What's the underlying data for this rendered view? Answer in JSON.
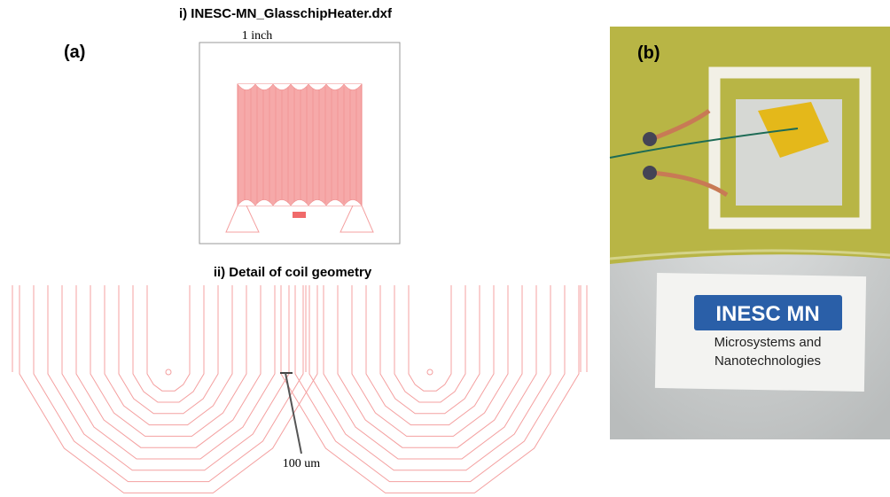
{
  "panel_a": {
    "label": "(a)",
    "drawing_1": {
      "title": "i) INESC-MN_GlasschipHeater.dxf",
      "dimension": "1 inch"
    },
    "drawing_2": {
      "title": "ii) Detail of coil geometry",
      "scale_label": "100 um"
    }
  },
  "panel_b": {
    "label": "(b)",
    "sign": {
      "logo": "INESC MN",
      "line_1": "Microsystems and",
      "line_2": "Nanotechnologies"
    }
  }
}
